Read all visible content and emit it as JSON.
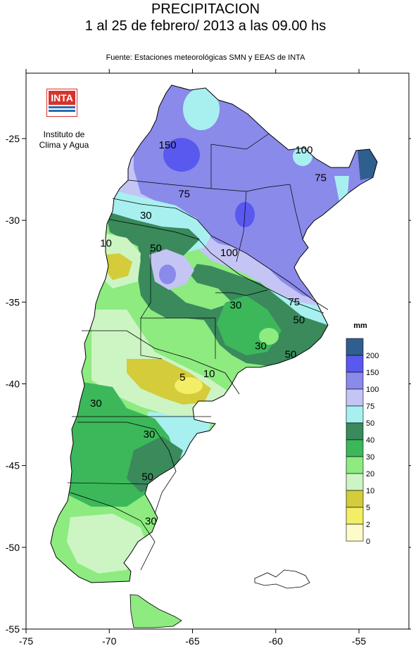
{
  "title": "PRECIPITACION",
  "subtitle": "1 al 25 de febrero/ 2013 a las 09.00 hs",
  "source": "Fuente: Estaciones meteorológicas SMN y EEAS de INTA",
  "logo": {
    "text": "INTA",
    "caption_line1": "Instituto de",
    "caption_line2": "Clima y Agua",
    "color": "#d9322b"
  },
  "axes": {
    "x_ticks": [
      "-75",
      "-70",
      "-65",
      "-60",
      "-55"
    ],
    "y_ticks": [
      "-25",
      "-30",
      "-35",
      "-40",
      "-45",
      "-50",
      "-55"
    ],
    "xlim": [
      -75,
      -52
    ],
    "ylim": [
      -55,
      -21
    ]
  },
  "contour_labels": [
    {
      "text": "150",
      "lon": -66.5,
      "lat": -25.6
    },
    {
      "text": "100",
      "lon": -58.3,
      "lat": -25.9
    },
    {
      "text": "75",
      "lon": -57.3,
      "lat": -27.6
    },
    {
      "text": "75",
      "lon": -65.5,
      "lat": -28.6
    },
    {
      "text": "30",
      "lon": -67.8,
      "lat": -29.9
    },
    {
      "text": "10",
      "lon": -70.2,
      "lat": -31.6
    },
    {
      "text": "50",
      "lon": -67.2,
      "lat": -31.9
    },
    {
      "text": "100",
      "lon": -62.8,
      "lat": -32.2
    },
    {
      "text": "30",
      "lon": -62.4,
      "lat": -35.4
    },
    {
      "text": "75",
      "lon": -58.9,
      "lat": -35.2
    },
    {
      "text": "50",
      "lon": -58.6,
      "lat": -36.3
    },
    {
      "text": "30",
      "lon": -60.9,
      "lat": -37.9
    },
    {
      "text": "50",
      "lon": -59.1,
      "lat": -38.4
    },
    {
      "text": "5",
      "lon": -65.6,
      "lat": -39.8
    },
    {
      "text": "10",
      "lon": -64.0,
      "lat": -39.6
    },
    {
      "text": "30",
      "lon": -70.8,
      "lat": -41.4
    },
    {
      "text": "30",
      "lon": -67.6,
      "lat": -43.3
    },
    {
      "text": "50",
      "lon": -67.7,
      "lat": -45.9
    },
    {
      "text": "30",
      "lon": -67.5,
      "lat": -48.6
    }
  ],
  "legend": {
    "title": "mm",
    "bins": [
      {
        "label": "200",
        "color": "#2f5f8f"
      },
      {
        "label": "150",
        "color": "#5959ef"
      },
      {
        "label": "100",
        "color": "#8a8aea"
      },
      {
        "label": "75",
        "color": "#c4c4f5"
      },
      {
        "label": "50",
        "color": "#a8f0f0"
      },
      {
        "label": "40",
        "color": "#3a8a5c"
      },
      {
        "label": "30",
        "color": "#3cb85a"
      },
      {
        "label": "20",
        "color": "#8deb80"
      },
      {
        "label": "10",
        "color": "#cdf5c4"
      },
      {
        "label": "5",
        "color": "#d4cc3a"
      },
      {
        "label": "2",
        "color": "#f2ee66"
      },
      {
        "label": "0",
        "color": "#fdfbc8"
      }
    ]
  }
}
